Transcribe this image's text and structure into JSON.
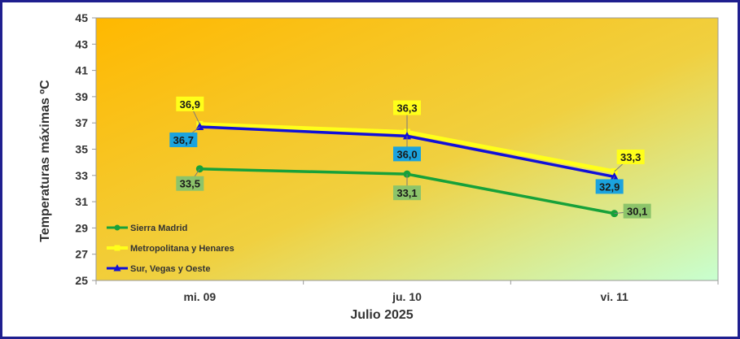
{
  "chart_data": {
    "type": "line",
    "categories": [
      "mi. 09",
      "ju. 10",
      "vi. 11"
    ],
    "series": [
      {
        "name": "Sierra Madrid",
        "values": [
          33.5,
          33.1,
          30.1
        ],
        "labels": [
          "33,5",
          "33,1",
          "30,1"
        ],
        "color": "#17a13a",
        "label_bg": "#8cc46a",
        "marker": "circle"
      },
      {
        "name": "Metropolitana y Henares",
        "values": [
          36.9,
          36.3,
          33.3
        ],
        "labels": [
          "36,9",
          "36,3",
          "33,3"
        ],
        "color": "#ffff1a",
        "label_bg": "#ffff1a",
        "marker": "square"
      },
      {
        "name": "Sur, Vegas y Oeste",
        "values": [
          36.7,
          36.0,
          32.9
        ],
        "labels": [
          "36,7",
          "36,0",
          "32,9"
        ],
        "color": "#1010d8",
        "label_bg": "#1ba3de",
        "marker": "triangle"
      }
    ],
    "xlabel": "Julio 2025",
    "ylabel": "Temperaturas máximas ºC",
    "ylim": [
      25,
      45
    ],
    "yticks": [
      "25",
      "27",
      "29",
      "31",
      "33",
      "35",
      "37",
      "39",
      "41",
      "43",
      "45"
    ],
    "grid": false,
    "legend_position": "bottom-left",
    "background_gradient": [
      "#ffb800",
      "#c8ffd0"
    ]
  }
}
